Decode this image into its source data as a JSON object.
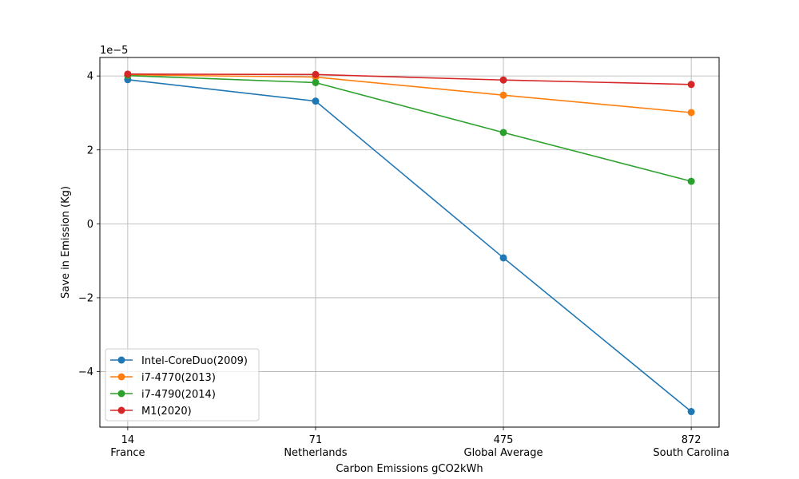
{
  "chart_data": {
    "type": "line",
    "title": "",
    "xlabel": "Carbon Emissions gCO2kWh",
    "ylabel": "Save in Emission (Kg)",
    "y_offset_text": "1e−5",
    "y_scale_multiplier": 1e-05,
    "categories": [
      "14\nFrance",
      "71\nNetherlands",
      "475\nGlobal Average",
      "872\nSouth Carolina"
    ],
    "category_lines": [
      [
        "14",
        "France"
      ],
      [
        "71",
        "Netherlands"
      ],
      [
        "475",
        "Global Average"
      ],
      [
        "872",
        "South Carolina"
      ]
    ],
    "ylim": [
      -5.5,
      4.5
    ],
    "yticks": [
      -4,
      -2,
      0,
      2,
      4
    ],
    "ytick_labels": [
      "−4",
      "−2",
      "0",
      "2",
      "4"
    ],
    "grid": true,
    "legend_position": "lower-left",
    "series": [
      {
        "name": "Intel-CoreDuo(2009)",
        "color": "#1f77b4",
        "values": [
          3.9,
          3.32,
          -0.92,
          -5.08
        ]
      },
      {
        "name": "i7-4770(2013)",
        "color": "#ff7f0e",
        "values": [
          4.03,
          3.97,
          3.48,
          3.01
        ]
      },
      {
        "name": "i7-4790(2014)",
        "color": "#2ca02c",
        "values": [
          4.01,
          3.82,
          2.47,
          1.15
        ]
      },
      {
        "name": "M1(2020)",
        "color": "#d62728",
        "values": [
          4.05,
          4.04,
          3.89,
          3.77
        ]
      }
    ]
  }
}
